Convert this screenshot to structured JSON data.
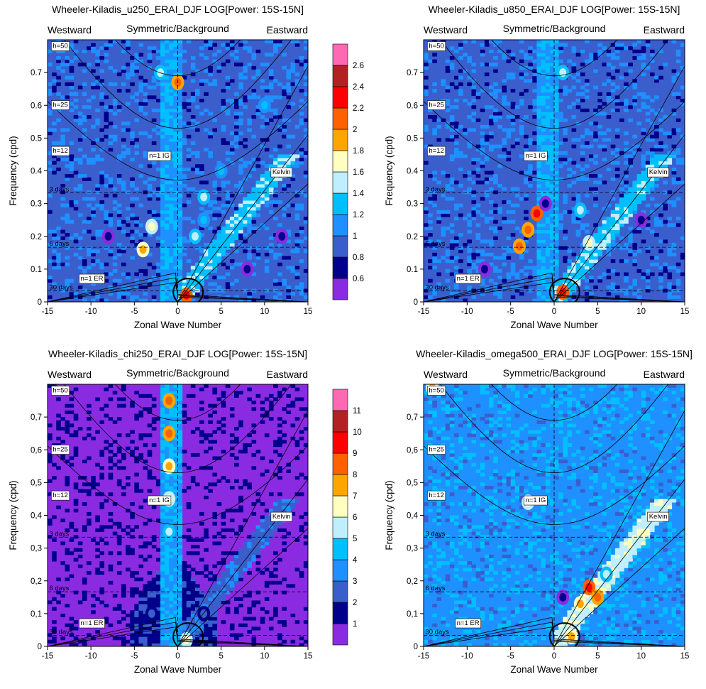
{
  "figure": {
    "panel_labels": {
      "westward": "Westward",
      "symmetric": "Symmetric/Background",
      "eastward": "Eastward",
      "xlabel": "Zonal Wave Number",
      "ylabel": "Frequency (cpd)"
    },
    "curve_labels": {
      "h50": "h=50",
      "h25": "h=25",
      "h12": "h=12",
      "ig": "n=1 IG",
      "kelvin": "Kelvin",
      "er": "n=1 ER",
      "d3": "3 days",
      "d6": "6 days",
      "d30": "30 days"
    },
    "colorbar_top": [
      "2.6",
      "2.4",
      "2.2",
      "2",
      "1.8",
      "1.6",
      "1.4",
      "1.2",
      "1",
      "0.8",
      "0.6"
    ],
    "colorbar_bottom": [
      "11",
      "10",
      "9",
      "8",
      "7",
      "6",
      "5",
      "4",
      "3",
      "2",
      "1"
    ]
  },
  "colors": {
    "fill_levels": [
      "#8a2be2",
      "#00008b",
      "#3a5fcd",
      "#1e90ff",
      "#00bfff",
      "#bfefff",
      "#ffffc0",
      "#ffa500",
      "#ff6000",
      "#ff0000",
      "#b22222",
      "#ff69b4"
    ]
  },
  "chart_data": [
    {
      "type": "heatmap",
      "title": "Wheeler-Kiladis_u250_ERAI_DJF LOG[Power: 15S-15N]",
      "xlabel": "Zonal Wave Number",
      "ylabel": "Frequency (cpd)",
      "xlim": [
        -15,
        15
      ],
      "ylim": [
        0,
        0.8
      ],
      "x_ticks": [
        -15,
        -10,
        -5,
        0,
        5,
        10,
        15
      ],
      "y_ticks": [
        0,
        0.1,
        0.2,
        0.3,
        0.4,
        0.5,
        0.6,
        0.7
      ],
      "y_tick_labels": [
        "0",
        "0.1",
        "0.2",
        "0.3",
        "0.4",
        "0.5",
        "0.6",
        "0.7"
      ],
      "colorbar_levels": [
        0.6,
        0.8,
        1,
        1.2,
        1.4,
        1.6,
        1.8,
        2,
        2.2,
        2.4,
        2.6
      ],
      "background_level": 2,
      "highlights": [
        {
          "k": 3,
          "w": 0.32,
          "level": 5
        },
        {
          "k": 3,
          "w": 0.25,
          "level": 4
        },
        {
          "k": 2,
          "w": 0.2,
          "level": 5
        },
        {
          "k": 5,
          "w": 0.4,
          "level": 4
        },
        {
          "k": -3,
          "w": 0.23,
          "level": 6
        },
        {
          "k": -4,
          "w": 0.16,
          "level": 7
        },
        {
          "k": 0,
          "w": 0.67,
          "level": 8
        },
        {
          "k": 1,
          "w": 0.02,
          "level": 9
        },
        {
          "k": -2,
          "w": 0.7,
          "level": 5
        },
        {
          "k": 10,
          "w": 0.6,
          "level": 4
        },
        {
          "k": 12,
          "w": 0.2,
          "level": 1
        },
        {
          "k": -8,
          "w": 0.2,
          "level": 1
        },
        {
          "k": 8,
          "w": 0.1,
          "level": 1
        }
      ]
    },
    {
      "type": "heatmap",
      "title": "Wheeler-Kiladis_u850_ERAI_DJF LOG[Power: 15S-15N]",
      "xlabel": "Zonal Wave Number",
      "ylabel": "Frequency (cpd)",
      "xlim": [
        -15,
        15
      ],
      "ylim": [
        0,
        0.8
      ],
      "x_ticks": [
        -15,
        -10,
        -5,
        0,
        5,
        10,
        15
      ],
      "y_ticks": [
        0,
        0.1,
        0.2,
        0.3,
        0.4,
        0.5,
        0.6,
        0.7
      ],
      "y_tick_labels": [
        "0",
        "0.1",
        "0.2",
        "0.3",
        "0.4",
        "0.5",
        "0.6",
        "0.7"
      ],
      "colorbar_levels": [
        0.6,
        0.8,
        1,
        1.2,
        1.4,
        1.6,
        1.8,
        2,
        2.2,
        2.4,
        2.6
      ],
      "background_level": 2,
      "highlights": [
        {
          "k": -2,
          "w": 0.27,
          "level": 9
        },
        {
          "k": -3,
          "w": 0.22,
          "level": 8
        },
        {
          "k": -4,
          "w": 0.17,
          "level": 8
        },
        {
          "k": -1,
          "w": 0.3,
          "level": 1
        },
        {
          "k": 1,
          "w": 0.7,
          "level": 5
        },
        {
          "k": 3,
          "w": 0.28,
          "level": 5
        },
        {
          "k": 4,
          "w": 0.18,
          "level": 6
        },
        {
          "k": 1,
          "w": 0.03,
          "level": 9
        },
        {
          "k": 10,
          "w": 0.25,
          "level": 1
        },
        {
          "k": -8,
          "w": 0.1,
          "level": 1
        }
      ]
    },
    {
      "type": "heatmap",
      "title": "Wheeler-Kiladis_chi250_ERAI_DJF LOG[Power: 15S-15N]",
      "xlabel": "Zonal Wave Number",
      "ylabel": "Frequency (cpd)",
      "xlim": [
        -15,
        15
      ],
      "ylim": [
        0,
        0.8
      ],
      "x_ticks": [
        -15,
        -10,
        -5,
        0,
        5,
        10,
        15
      ],
      "y_ticks": [
        0,
        0.1,
        0.2,
        0.3,
        0.4,
        0.5,
        0.6,
        0.7
      ],
      "y_tick_labels": [
        "0",
        "0,1",
        "0,2",
        "0,3",
        "0,4",
        "0,5",
        "0,6",
        "0,7"
      ],
      "colorbar_levels": [
        1,
        2,
        3,
        4,
        5,
        6,
        7,
        8,
        9,
        10,
        11
      ],
      "background_level": 0,
      "highlights": [
        {
          "k": -1,
          "w": 0.75,
          "level": 8
        },
        {
          "k": -1,
          "w": 0.65,
          "level": 8
        },
        {
          "k": -1,
          "w": 0.55,
          "level": 7
        },
        {
          "k": -1,
          "w": 0.45,
          "level": 6
        },
        {
          "k": -1,
          "w": 0.35,
          "level": 5
        },
        {
          "k": 1,
          "w": 0.02,
          "level": 6
        },
        {
          "k": -3,
          "w": 0.1,
          "level": 2
        },
        {
          "k": 3,
          "w": 0.1,
          "level": 2
        }
      ]
    },
    {
      "type": "heatmap",
      "title": "Wheeler-Kiladis_omega500_ERAI_DJF LOG[Power: 15S-15N]",
      "xlabel": "Zonal Wave Number",
      "ylabel": "Frequency (cpd)",
      "xlim": [
        -15,
        15
      ],
      "ylim": [
        0,
        0.8
      ],
      "x_ticks": [
        -15,
        -10,
        -5,
        0,
        5,
        10,
        15
      ],
      "y_ticks": [
        0,
        0.1,
        0.2,
        0.3,
        0.4,
        0.5,
        0.6,
        0.7
      ],
      "y_tick_labels": [
        "0",
        "0,1",
        "0,2",
        "0,3",
        "0,4",
        "0,5",
        "0,6",
        "0,7"
      ],
      "colorbar_levels": [
        1,
        2,
        3,
        4,
        5,
        6,
        7,
        8,
        9,
        10,
        11
      ],
      "background_level": 3,
      "highlights": [
        {
          "k": 4,
          "w": 0.18,
          "level": 9
        },
        {
          "k": 5,
          "w": 0.15,
          "level": 8
        },
        {
          "k": 3,
          "w": 0.13,
          "level": 7
        },
        {
          "k": 2,
          "w": 0.03,
          "level": 7
        },
        {
          "k": -3,
          "w": 0.44,
          "level": 6
        },
        {
          "k": 1,
          "w": 0.15,
          "level": 1
        },
        {
          "k": 6,
          "w": 0.22,
          "level": 5
        },
        {
          "k": -14,
          "w": 0.79,
          "level": 7
        }
      ]
    }
  ]
}
